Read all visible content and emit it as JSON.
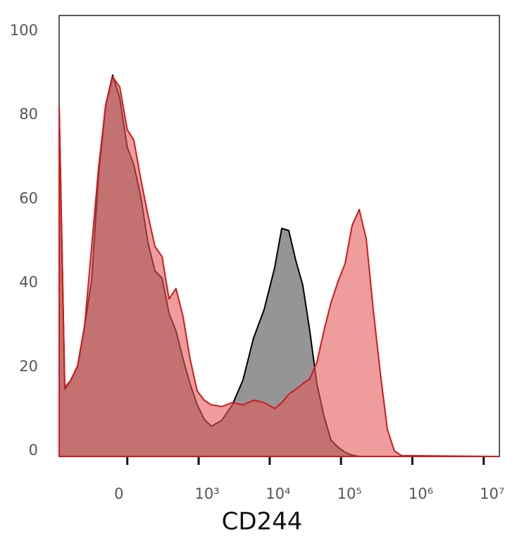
{
  "chart_data": {
    "type": "area",
    "x_label": "CD244",
    "xscale": "biexponential",
    "xlim": [
      -900,
      16600000
    ],
    "xticks": [
      0,
      {
        "value": 1000,
        "label": "10³"
      },
      {
        "value": 10000,
        "label": "10⁴"
      },
      {
        "value": 100000,
        "label": "10⁵"
      },
      {
        "value": 1000000,
        "label": "10⁶"
      },
      {
        "value": 10000000,
        "label": "10⁷"
      }
    ],
    "ylim": [
      0,
      105
    ],
    "yticks": [
      0,
      20,
      40,
      60,
      80,
      100
    ],
    "x": [
      -900,
      -747,
      -618,
      -483,
      -376,
      -287,
      -216,
      -153,
      -99,
      -50,
      0,
      43,
      91,
      144,
      205,
      277,
      362,
      465,
      594,
      753,
      953,
      1200,
      1511,
      2129,
      2990,
      4220,
      5940,
      8360,
      11760,
      14750,
      18500,
      23200,
      29100,
      36500,
      45900,
      57600,
      72300,
      90900,
      114000,
      143000,
      180000,
      226000,
      283000,
      356000,
      447000,
      561000,
      704000,
      16600000
    ],
    "series": [
      {
        "color": "#000000",
        "fill": "#8a8a8a",
        "values": [
          83,
          16,
          18,
          21.5,
          31,
          42,
          67,
          83.7,
          90.8,
          85.4,
          73.6,
          69.4,
          61.8,
          51,
          44.2,
          42.5,
          34.1,
          29.9,
          23.2,
          17.3,
          12.3,
          8.9,
          7.2,
          8.6,
          12.3,
          18.2,
          28.2,
          35,
          45,
          54.3,
          53.8,
          46.7,
          40.8,
          29.9,
          17.3,
          9.7,
          3.9,
          2.2,
          1,
          0.3,
          0,
          0,
          0,
          0,
          0,
          0,
          0,
          0
        ]
      },
      {
        "color": "#d01a1a",
        "fill": "#e25a5a",
        "values": [
          83,
          16.5,
          18,
          21.5,
          31,
          50,
          68.6,
          83.7,
          90.4,
          88,
          77.8,
          75.3,
          66,
          57.6,
          50,
          47.6,
          37.5,
          40,
          33.3,
          23.2,
          15.6,
          13.4,
          12.3,
          11.9,
          12.8,
          12.3,
          13.4,
          12.8,
          11.4,
          12.8,
          14.8,
          16,
          17.3,
          18.5,
          22.4,
          29.9,
          36.6,
          41.7,
          45.9,
          55,
          58.8,
          51.8,
          35,
          19.8,
          6.4,
          1.3,
          0.2,
          0
        ]
      }
    ]
  }
}
